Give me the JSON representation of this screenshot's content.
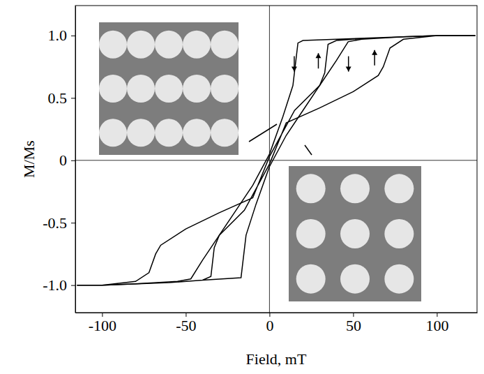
{
  "chart_data": {
    "type": "line",
    "x_label": "Field, mT",
    "y_label": "M/Ms",
    "xlim": [
      -116,
      124
    ],
    "ylim": [
      -1.22,
      1.24
    ],
    "xticks": [
      -100,
      -50,
      0,
      50,
      100
    ],
    "yticks": [
      {
        "value": -1,
        "label": "-1.0"
      },
      -0.5,
      0,
      0.5,
      {
        "value": 1,
        "label": "1.0"
      }
    ],
    "grid": false,
    "marker": "none",
    "line_style": "solid",
    "series": [
      {
        "color": "#000000",
        "x": [
          123,
          100,
          40,
          20,
          17,
          14,
          8,
          0,
          -10,
          -20,
          -30,
          -33,
          -35,
          -40,
          -60,
          -100,
          -115,
          -100,
          -60,
          -40,
          -17,
          -14,
          -8,
          0,
          10,
          20,
          30,
          33,
          35,
          40,
          60,
          100,
          123
        ],
        "values": [
          1.0,
          1.0,
          0.97,
          0.96,
          0.94,
          0.6,
          0.35,
          0.05,
          -0.2,
          -0.4,
          -0.6,
          -0.7,
          -0.93,
          -0.96,
          -0.98,
          -1.0,
          -1.0,
          -1.0,
          -0.98,
          -0.96,
          -0.94,
          -0.6,
          -0.35,
          -0.05,
          0.2,
          0.4,
          0.6,
          0.7,
          0.93,
          0.96,
          0.98,
          1.0,
          1.0
        ]
      },
      {
        "color": "#000000",
        "x": [
          123,
          100,
          80,
          55,
          47,
          40,
          30,
          15,
          0,
          -10,
          -30,
          -50,
          -65,
          -68,
          -72,
          -80,
          -100,
          -115,
          -100,
          -80,
          -55,
          -47,
          -40,
          -30,
          -15,
          0,
          10,
          30,
          50,
          65,
          68,
          72,
          80,
          100,
          123
        ],
        "values": [
          1.0,
          1.0,
          0.99,
          0.97,
          0.95,
          0.8,
          0.6,
          0.4,
          0.03,
          -0.3,
          -0.42,
          -0.55,
          -0.68,
          -0.75,
          -0.9,
          -0.97,
          -1.0,
          -1.0,
          -1.0,
          -0.99,
          -0.97,
          -0.95,
          -0.8,
          -0.6,
          -0.4,
          -0.03,
          0.3,
          0.42,
          0.55,
          0.68,
          0.75,
          0.9,
          0.97,
          1.0,
          1.0
        ]
      }
    ]
  }
}
